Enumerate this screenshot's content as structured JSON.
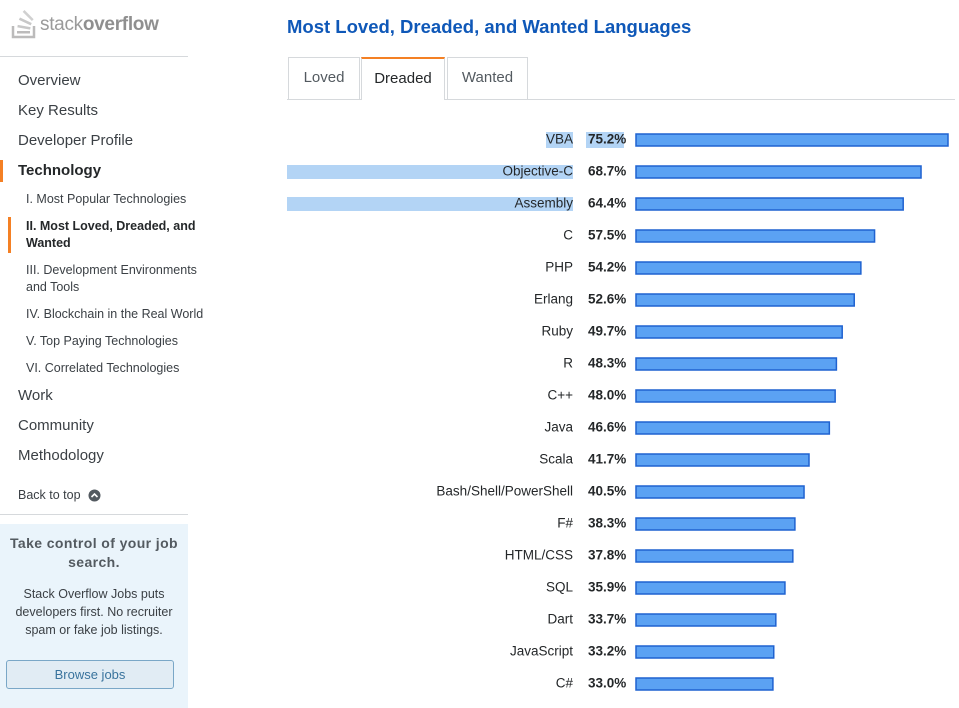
{
  "sidebar": {
    "logo": [
      "stack",
      "overflow"
    ],
    "nav_top": [
      "Overview",
      "Key Results",
      "Developer Profile",
      "Technology"
    ],
    "subnav": [
      "I. Most Popular Technologies",
      "II. Most Loved, Dreaded, and Wanted",
      "III. Development Environments and Tools",
      "IV. Blockchain in the Real World",
      "V. Top Paying Technologies",
      "VI. Correlated Technologies"
    ],
    "nav_bottom": [
      "Work",
      "Community",
      "Methodology"
    ],
    "back_to_top": "Back to top",
    "promo": {
      "title": "Take control of your job search.",
      "text": "Stack Overflow Jobs puts developers first. No recruiter spam or fake job listings.",
      "button": "Browse jobs"
    }
  },
  "chart_data": {
    "type": "bar",
    "title": "Most Loved, Dreaded, and Wanted Languages",
    "tabs": [
      "Loved",
      "Dreaded",
      "Wanted"
    ],
    "active_tab": "Dreaded",
    "color": "#5ba2f3",
    "categories": [
      "VBA",
      "Objective-C",
      "Assembly",
      "C",
      "PHP",
      "Erlang",
      "Ruby",
      "R",
      "C++",
      "Java",
      "Scala",
      "Bash/Shell/PowerShell",
      "F#",
      "HTML/CSS",
      "SQL",
      "Dart",
      "JavaScript",
      "C#"
    ],
    "values": [
      75.2,
      68.7,
      64.4,
      57.5,
      54.2,
      52.6,
      49.7,
      48.3,
      48.0,
      46.6,
      41.7,
      40.5,
      38.3,
      37.8,
      35.9,
      33.7,
      33.2,
      33.0
    ],
    "value_labels": [
      "75.2%",
      "68.7%",
      "64.4%",
      "57.5%",
      "54.2%",
      "52.6%",
      "49.7%",
      "48.3%",
      "48.0%",
      "46.6%",
      "41.7%",
      "40.5%",
      "38.3%",
      "37.8%",
      "35.9%",
      "33.7%",
      "33.2%",
      "33.0%"
    ]
  }
}
